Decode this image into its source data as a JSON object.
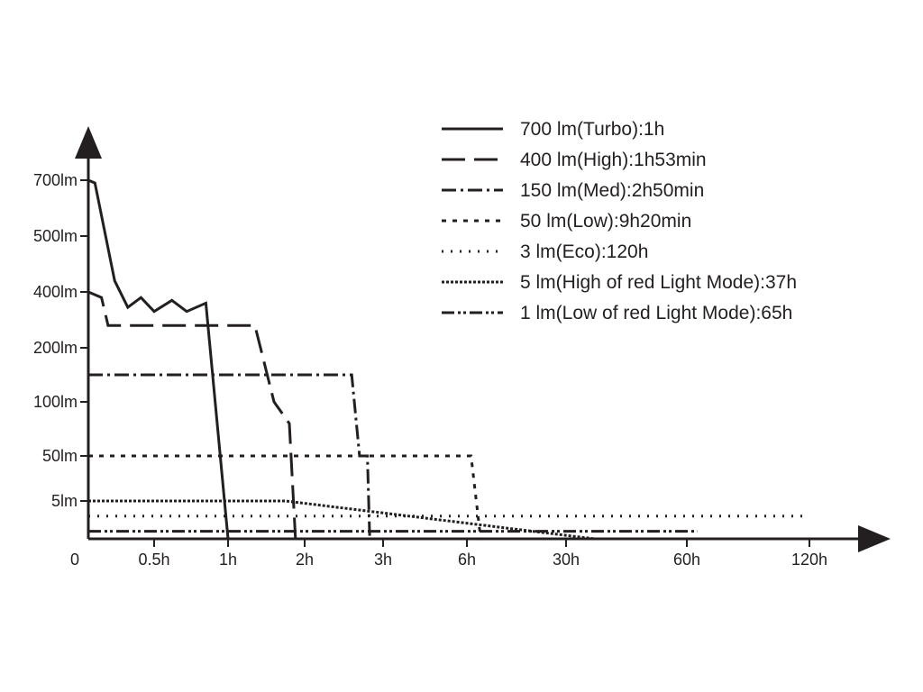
{
  "chart_data": {
    "type": "line",
    "title": "",
    "xlabel": "",
    "ylabel": "",
    "axis_color": "#231f20",
    "line_color": "#231f20",
    "x_tick_labels": [
      "0",
      "0.5h",
      "1h",
      "2h",
      "3h",
      "6h",
      "30h",
      "60h",
      "120h"
    ],
    "y_tick_labels": [
      "5lm",
      "50lm",
      "100lm",
      "200lm",
      "400lm",
      "500lm",
      "700lm"
    ],
    "legend_position": "top-right",
    "series": [
      {
        "name": "700 lm(Turbo):1h",
        "style": "solid",
        "points": [
          [
            0,
            700
          ],
          [
            0.05,
            690
          ],
          [
            0.2,
            420
          ],
          [
            0.3,
            345
          ],
          [
            0.4,
            380
          ],
          [
            0.5,
            330
          ],
          [
            0.62,
            370
          ],
          [
            0.72,
            330
          ],
          [
            0.85,
            360
          ],
          [
            1.0,
            0
          ]
        ]
      },
      {
        "name": "400 lm(High):1h53min",
        "style": "dashed",
        "points": [
          [
            0,
            400
          ],
          [
            0.1,
            380
          ],
          [
            0.15,
            280
          ],
          [
            1.35,
            280
          ],
          [
            1.6,
            100
          ],
          [
            1.8,
            80
          ],
          [
            1.88,
            0
          ]
        ]
      },
      {
        "name": "150 lm(Med):2h50min",
        "style": "dashdot",
        "points": [
          [
            0,
            150
          ],
          [
            2.6,
            150
          ],
          [
            2.7,
            50
          ],
          [
            2.8,
            50
          ],
          [
            2.83,
            0
          ]
        ]
      },
      {
        "name": "50 lm(Low):9h20min",
        "style": "dashed-short",
        "points": [
          [
            0,
            50
          ],
          [
            7.0,
            50
          ],
          [
            9.33,
            0
          ]
        ]
      },
      {
        "name": "3 lm(Eco):120h",
        "style": "dotted",
        "points": [
          [
            0,
            3
          ],
          [
            120,
            3
          ]
        ]
      },
      {
        "name": "5 lm(High of red Light Mode):37h",
        "style": "dense-dotted",
        "points": [
          [
            0,
            5
          ],
          [
            1.75,
            5
          ],
          [
            37,
            0
          ]
        ]
      },
      {
        "name": "1 lm(Low of red Light Mode):65h",
        "style": "dashdotdot",
        "points": [
          [
            0,
            1
          ],
          [
            65,
            1
          ]
        ]
      }
    ]
  }
}
